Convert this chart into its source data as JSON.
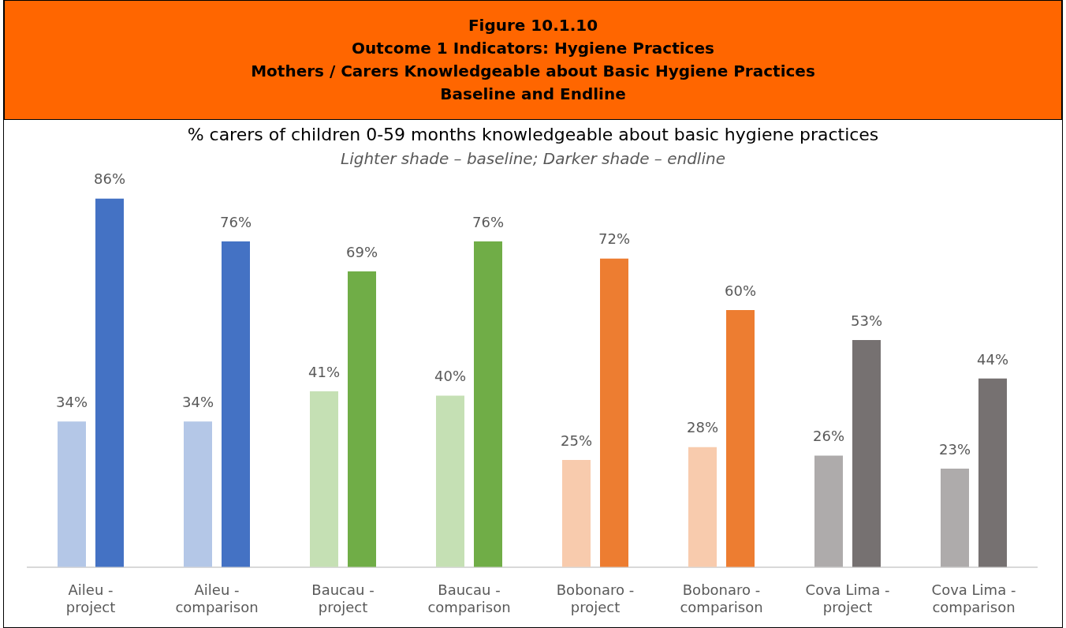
{
  "chart_data": {
    "type": "bar",
    "title": "Figure 10.1.10\nOutcome 1 Indicators: Hygiene Practices\nMothers / Carers Knowledgeable about Basic Hygiene Practices\nBaseline and Endline",
    "subtitle": "% carers of children 0-59 months knowledgeable about basic hygiene practices",
    "annotations": [
      "Lighter shade – baseline; Darker shade – endline"
    ],
    "categories": [
      "Aileu - project",
      "Aileu - comparison",
      "Baucau - project",
      "Baucau - comparison",
      "Bobonaro - project",
      "Bobonaro - comparison",
      "Cova Lima - project",
      "Cova Lima - comparison"
    ],
    "series": [
      {
        "colors": [
          "#b4c7e7",
          "#b4c7e7",
          "#c5e0b4",
          "#c5e0b4",
          "#f8cbad",
          "#f8cbad",
          "#aeabab",
          "#aeabab"
        ],
        "values": [
          34,
          34,
          41,
          40,
          25,
          28,
          26,
          23
        ],
        "value_labels": [
          "34%",
          "34%",
          "41%",
          "40%",
          "25%",
          "28%",
          "26%",
          "23%"
        ]
      },
      {
        "colors": [
          "#4472c4",
          "#4472c4",
          "#70ad47",
          "#70ad47",
          "#ed7d31",
          "#ed7d31",
          "#767171",
          "#767171"
        ],
        "values": [
          86,
          76,
          69,
          76,
          72,
          60,
          53,
          44
        ],
        "value_labels": [
          "86%",
          "76%",
          "69%",
          "76%",
          "72%",
          "60%",
          "53%",
          "44%"
        ]
      }
    ],
    "grid": false,
    "legend": false
  }
}
